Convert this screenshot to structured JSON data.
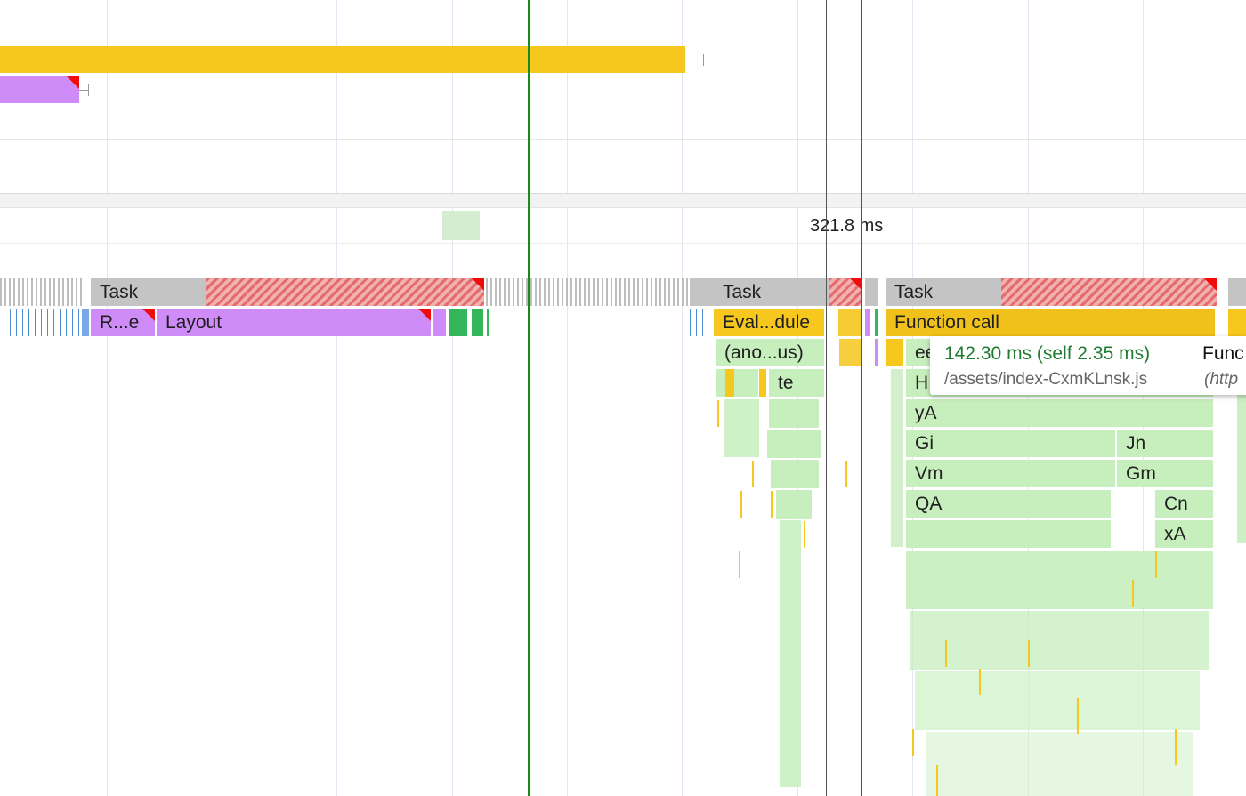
{
  "timestamp_label": "321.8 ms",
  "tracks": {
    "main": {
      "tasks": [
        {
          "label": "Task"
        },
        {
          "label": "Task"
        },
        {
          "label": "Task"
        }
      ],
      "row2": [
        {
          "label": "R...e"
        },
        {
          "label": "Layout"
        },
        {
          "label": "Eval...dule"
        },
        {
          "label": "Function call"
        }
      ],
      "row3": [
        {
          "label": "(ano...us)"
        },
        {
          "label": "ee"
        }
      ],
      "row4": [
        {
          "label": "te"
        },
        {
          "label": "H"
        }
      ],
      "stack": [
        {
          "label": "yA"
        },
        {
          "label": "Gi"
        },
        {
          "label": "Jn"
        },
        {
          "label": "Vm"
        },
        {
          "label": "Gm"
        },
        {
          "label": "QA"
        },
        {
          "label": "Cn"
        },
        {
          "label": "xA"
        }
      ]
    }
  },
  "tooltip": {
    "duration": "142.30 ms (self 2.35 ms)",
    "name": "Func",
    "file": "/assets/index-CxmKLnsk.js",
    "url": "(http"
  },
  "colors": {
    "task": "#c4c4c4",
    "scripting": "#f6c71c",
    "rendering": "#cf8cf9",
    "js_frames": "#c7eebd",
    "painting": "#34b75b",
    "long_task_marker": "#f10b0b",
    "selection_line": "#1a8a1a",
    "tooltip_duration": "#1e7b31"
  }
}
